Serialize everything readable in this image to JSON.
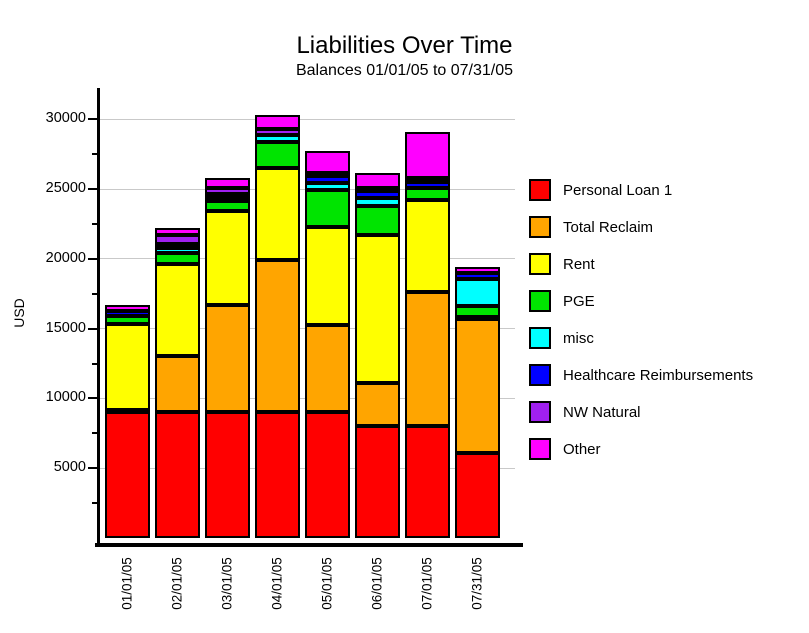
{
  "page": {
    "title": "Liabilities Over Time",
    "subtitle": "Balances 01/01/05 to 07/31/05"
  },
  "chart_data": {
    "type": "bar",
    "stacked": true,
    "title": "Liabilities Over Time",
    "subtitle": "Balances 01/01/05 to 07/31/05",
    "xlabel": "",
    "ylabel": "USD",
    "ylim": [
      0,
      32000
    ],
    "yticks": [
      5000,
      10000,
      15000,
      20000,
      25000,
      30000
    ],
    "minor_tick_step": 2500,
    "grid": true,
    "legend_position": "right",
    "background_color": "#ffffff",
    "gridline_color": "#c9c9c9",
    "bar_outline_color": "#000000",
    "categories": [
      "01/01/05",
      "02/01/05",
      "03/01/05",
      "04/01/05",
      "05/01/05",
      "06/01/05",
      "07/01/05",
      "07/31/05"
    ],
    "series": [
      {
        "name": "Personal Loan 1",
        "color": "#ff0000",
        "values": [
          9000,
          9000,
          9000,
          9000,
          9000,
          8000,
          8000,
          6100
        ]
      },
      {
        "name": "Total Reclaim",
        "color": "#ffa500",
        "values": [
          150,
          4050,
          7700,
          10900,
          6250,
          3100,
          9600,
          9600
        ]
      },
      {
        "name": "Rent",
        "color": "#ffff00",
        "values": [
          6200,
          6600,
          6700,
          6600,
          7000,
          10600,
          6600,
          150
        ]
      },
      {
        "name": "PGE",
        "color": "#00e400",
        "values": [
          550,
          800,
          750,
          1900,
          2650,
          2100,
          850,
          800
        ]
      },
      {
        "name": "misc",
        "color": "#00ffff",
        "values": [
          0,
          300,
          200,
          450,
          500,
          550,
          0,
          1900
        ]
      },
      {
        "name": "Healthcare Reimbursements",
        "color": "#0000ff",
        "values": [
          360,
          330,
          300,
          0,
          500,
          500,
          450,
          450
        ]
      },
      {
        "name": "NW Natural",
        "color": "#a020f0",
        "values": [
          0,
          620,
          450,
          450,
          250,
          200,
          300,
          0
        ]
      },
      {
        "name": "Other",
        "color": "#ff00ff",
        "values": [
          430,
          540,
          700,
          1000,
          1600,
          1100,
          3300,
          400
        ]
      }
    ]
  }
}
